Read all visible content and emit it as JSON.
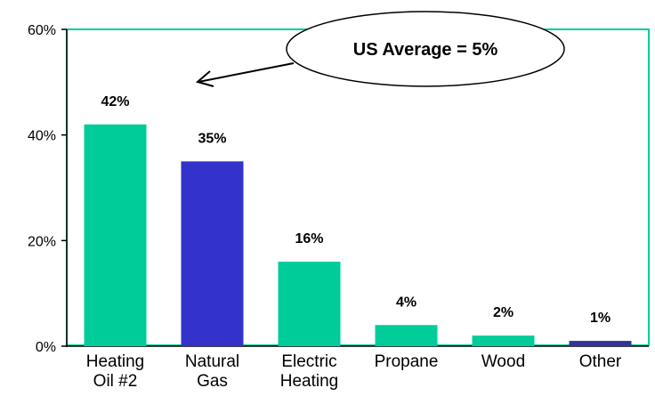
{
  "chart_data": {
    "type": "bar",
    "title": "",
    "xlabel": "",
    "ylabel": "",
    "ylim": [
      0,
      60
    ],
    "y_ticks": [
      "0%",
      "20%",
      "40%",
      "60%"
    ],
    "y_tick_values": [
      0,
      20,
      40,
      60
    ],
    "categories": [
      [
        "Heating",
        "Oil #2"
      ],
      [
        "Natural",
        "Gas"
      ],
      [
        "Electric",
        "Heating"
      ],
      [
        "Propane"
      ],
      [
        "Wood"
      ],
      [
        "Other"
      ]
    ],
    "values": [
      42,
      35,
      16,
      4,
      2,
      1
    ],
    "data_labels": [
      "42%",
      "35%",
      "16%",
      "4%",
      "2%",
      "1%"
    ],
    "bar_colors": [
      "#00cc99",
      "#3333cc",
      "#00cc99",
      "#00cc99",
      "#00cc99",
      "#333399"
    ],
    "frame_color": "#00cc99",
    "grid": false,
    "annotation": {
      "text": "US Average = 5%",
      "arrow_target_category": 0
    }
  }
}
